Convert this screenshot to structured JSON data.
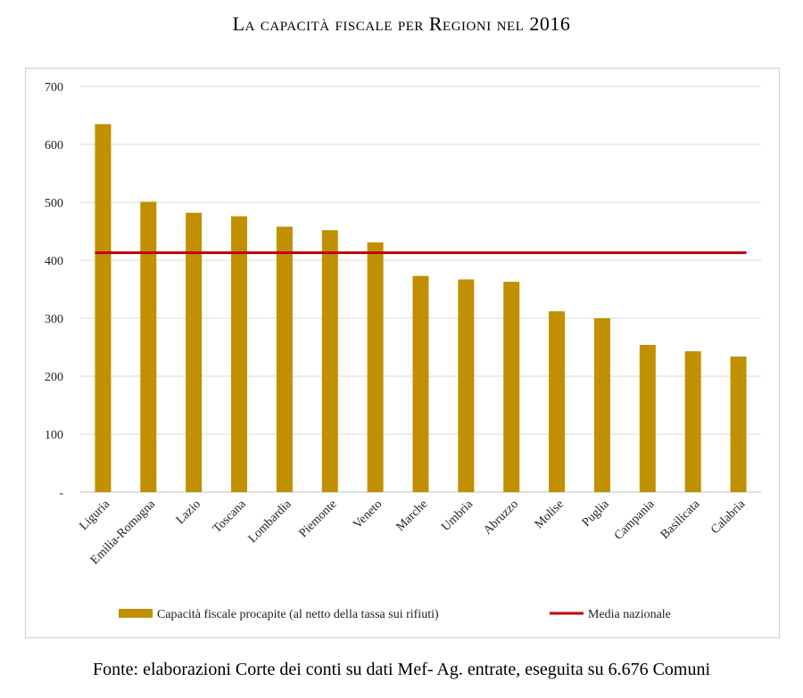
{
  "page": {
    "title": "La capacità fiscale per Regioni nel 2016",
    "source": "Fonte: elaborazioni Corte dei conti su dati Mef- Ag. entrate, eseguita su 6.676 Comuni"
  },
  "chart_data": {
    "type": "bar",
    "title": "La capacità fiscale per Regioni nel 2016",
    "xlabel": "",
    "ylabel": "",
    "ylim": [
      0,
      700
    ],
    "yticks": [
      0,
      100,
      200,
      300,
      400,
      500,
      600,
      700
    ],
    "ytick_labels": [
      "-",
      "100",
      "200",
      "300",
      "400",
      "500",
      "600",
      "700"
    ],
    "grid": true,
    "legend_position": "bottom",
    "categories": [
      "Liguria",
      "Emilia-Romagna",
      "Lazio",
      "Toscana",
      "Lombardia",
      "Piemonte",
      "Veneto",
      "Marche",
      "Umbria",
      "Abruzzo",
      "Molise",
      "Puglia",
      "Campania",
      "Basilicata",
      "Calabria"
    ],
    "series": [
      {
        "name": "Capacità fiscale procapite (al netto della tassa sui rifiuti)",
        "type": "bar",
        "color": "#C09000",
        "values": [
          635,
          501,
          482,
          476,
          458,
          452,
          431,
          373,
          367,
          363,
          312,
          300,
          254,
          243,
          234
        ]
      },
      {
        "name": "Media nazionale",
        "type": "line",
        "color": "#C00000",
        "value": 413
      }
    ]
  }
}
